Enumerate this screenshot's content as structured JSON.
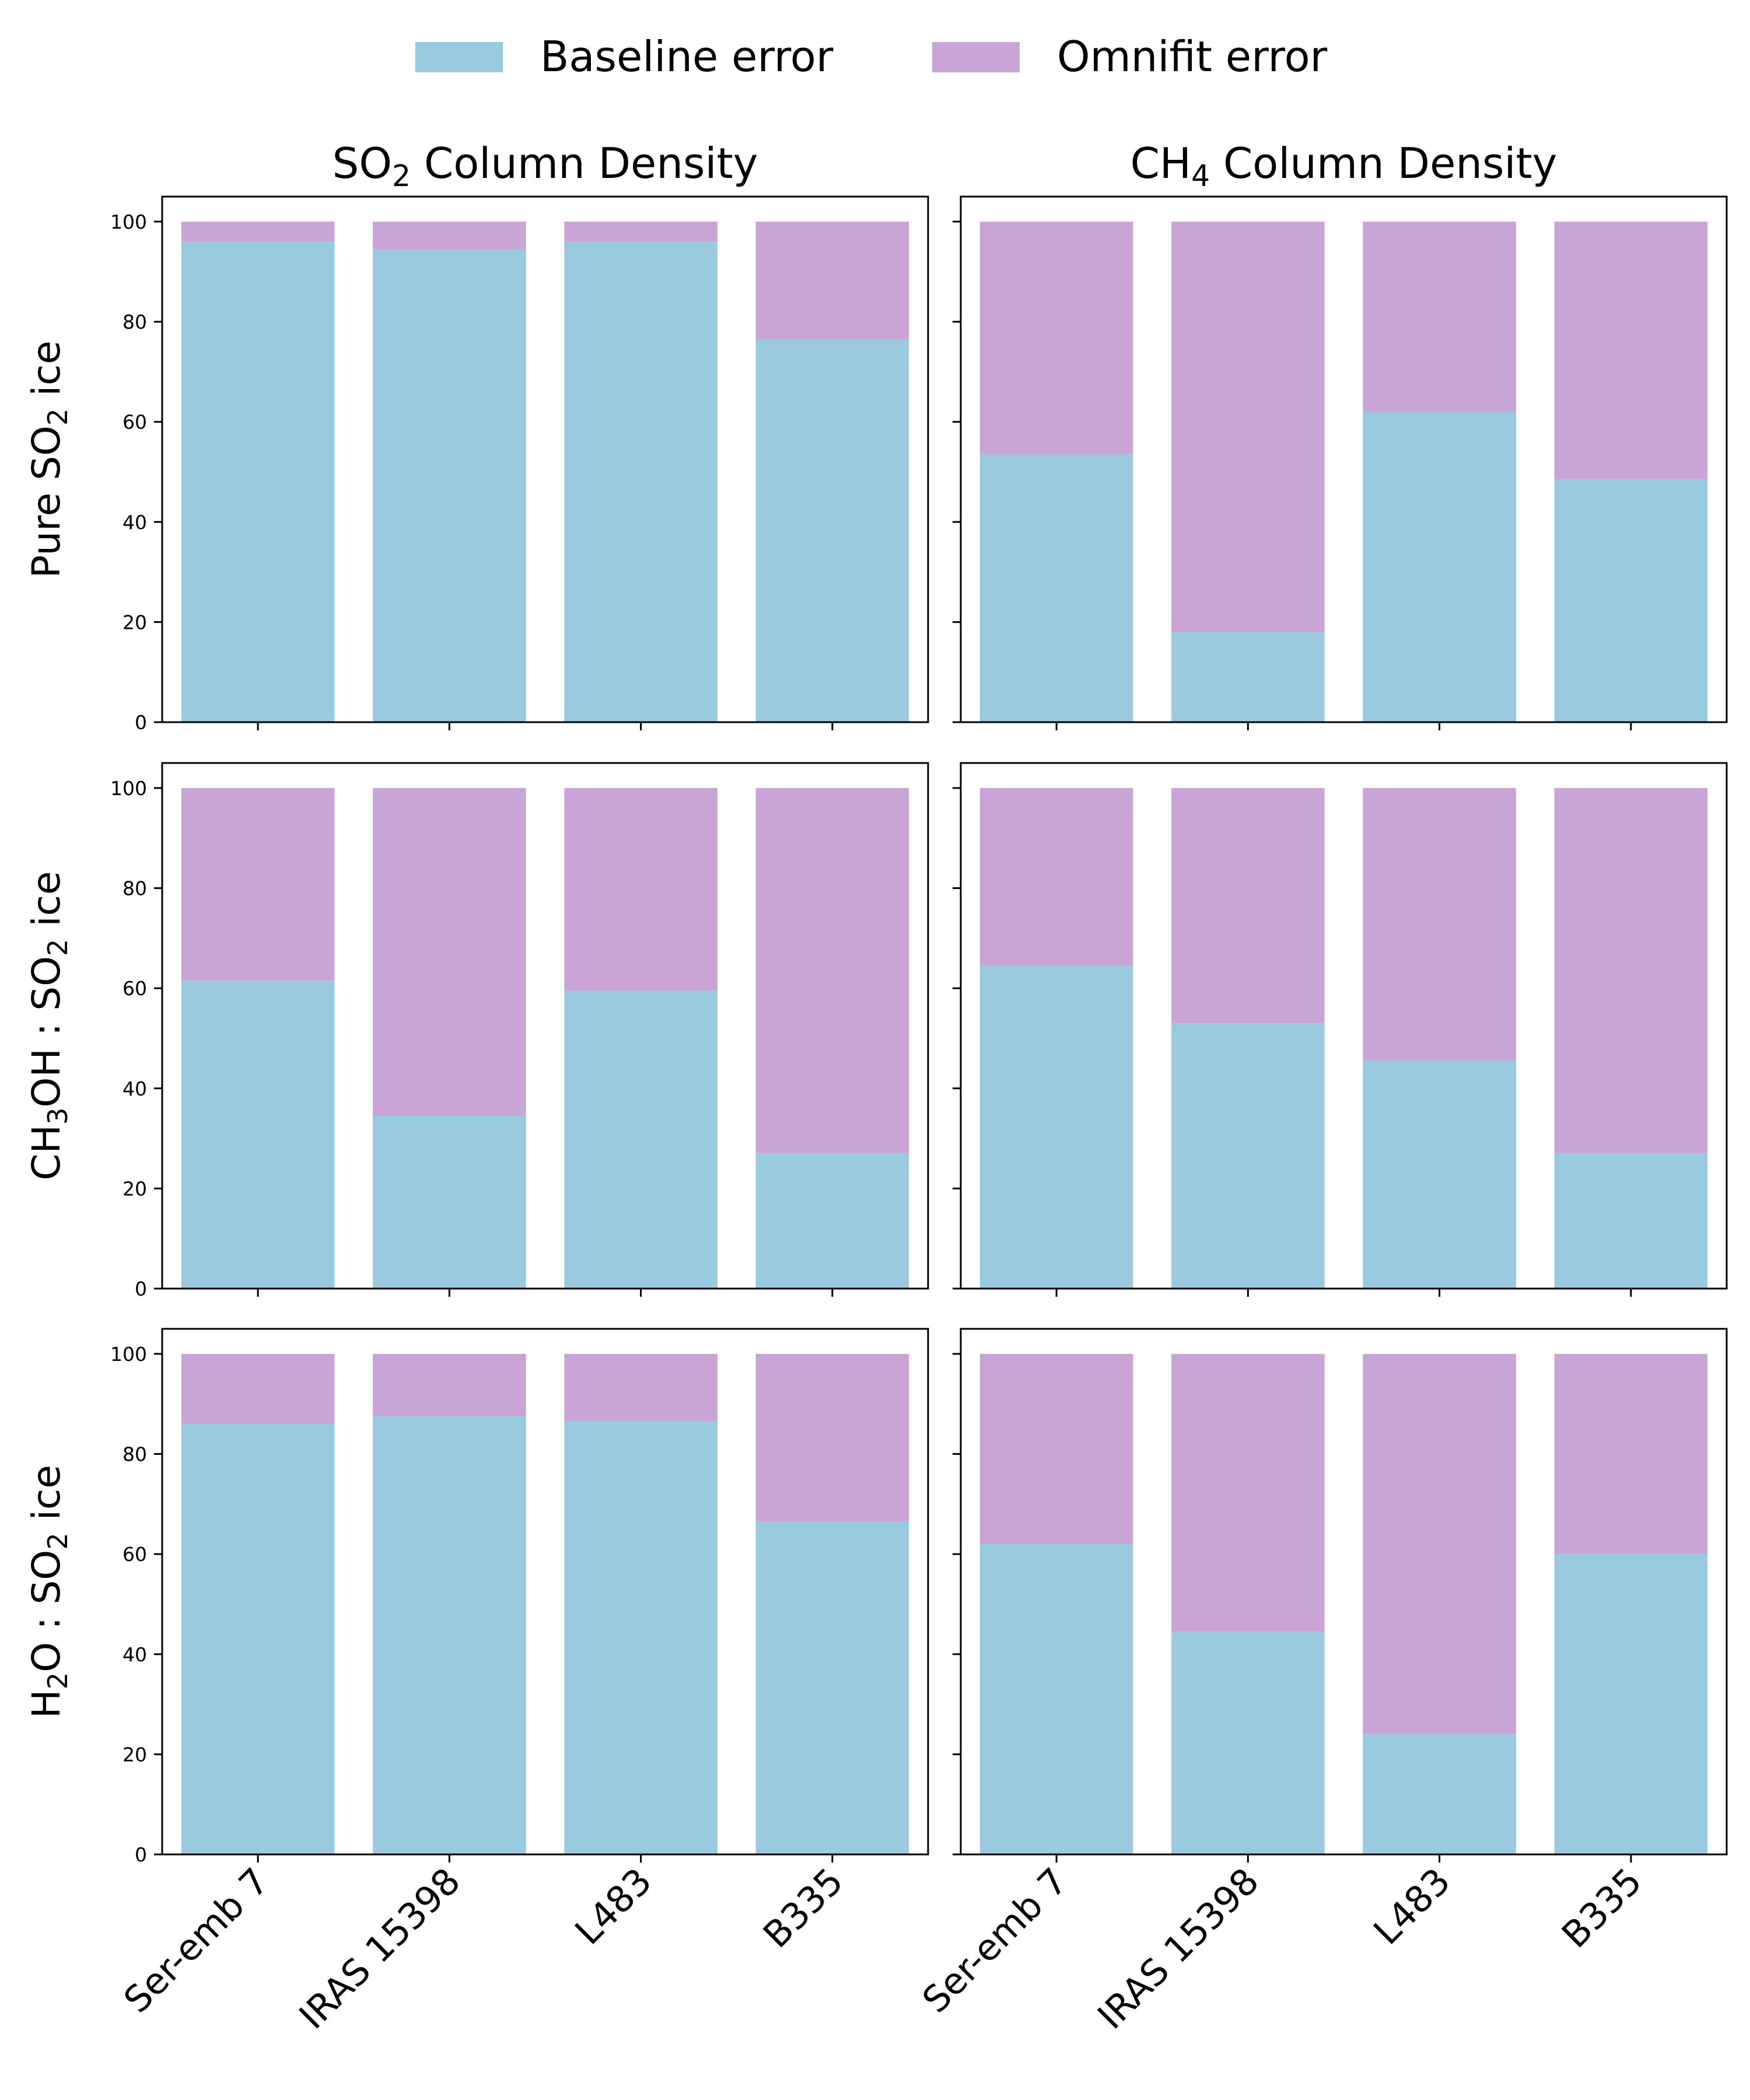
{
  "chart_data": {
    "type": "bar",
    "stacked": true,
    "legend": [
      {
        "name": "Baseline error",
        "color": "#9acadf"
      },
      {
        "name": "Omnifit error",
        "color": "#c9a5d7"
      }
    ],
    "columns": [
      {
        "title": "SO",
        "title_sub": "2",
        "title_rest": " Column Density"
      },
      {
        "title": "CH",
        "title_sub": "4",
        "title_rest": " Column Density"
      }
    ],
    "rows": [
      {
        "pre": "Pure SO",
        "sub1": "2",
        "mid": " ice",
        "sub2": "",
        "post": ""
      },
      {
        "pre": "CH",
        "sub1": "3",
        "mid": "OH : SO",
        "sub2": "2",
        "post": " ice"
      },
      {
        "pre": "H",
        "sub1": "2",
        "mid": "O : SO",
        "sub2": "2",
        "post": " ice"
      }
    ],
    "categories": [
      "Ser-emb 7",
      "IRAS 15398",
      "L483",
      "B335"
    ],
    "ylim": [
      0,
      105
    ],
    "yticks": [
      0,
      20,
      40,
      60,
      80,
      100
    ],
    "panels": [
      {
        "row": 0,
        "col": 0,
        "baseline": [
          96,
          94.5,
          96,
          76.5
        ],
        "total": [
          100,
          100,
          100,
          100
        ]
      },
      {
        "row": 0,
        "col": 1,
        "baseline": [
          53.5,
          18,
          62,
          48.5
        ],
        "total": [
          100,
          100,
          100,
          100
        ]
      },
      {
        "row": 1,
        "col": 0,
        "baseline": [
          61.5,
          34.5,
          59.5,
          27
        ],
        "total": [
          100,
          100,
          100,
          100
        ]
      },
      {
        "row": 1,
        "col": 1,
        "baseline": [
          64.5,
          53,
          45.5,
          27
        ],
        "total": [
          100,
          100,
          100,
          100
        ]
      },
      {
        "row": 2,
        "col": 0,
        "baseline": [
          86,
          87.5,
          86.5,
          66.5
        ],
        "total": [
          100,
          100,
          100,
          100
        ]
      },
      {
        "row": 2,
        "col": 1,
        "baseline": [
          62,
          44.5,
          24,
          60
        ],
        "total": [
          100,
          100,
          100,
          100
        ]
      }
    ]
  }
}
